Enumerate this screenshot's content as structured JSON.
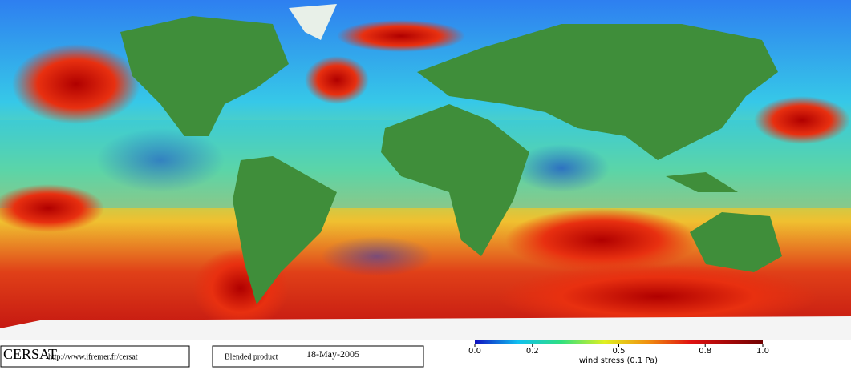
{
  "footer": {
    "logo": "CERSAT",
    "url": "http://www.ifremer.fr/cersat",
    "product": "Blended product",
    "date": "18-May-2005"
  },
  "colorbar": {
    "ticks": [
      {
        "value": 0,
        "label": "0.0"
      },
      0.2,
      0.5,
      0.8,
      {
        "value": 1,
        "label": "1.0"
      }
    ],
    "lim": [
      0,
      1
    ],
    "label": "wind stress (0.1 Pa)"
  }
}
